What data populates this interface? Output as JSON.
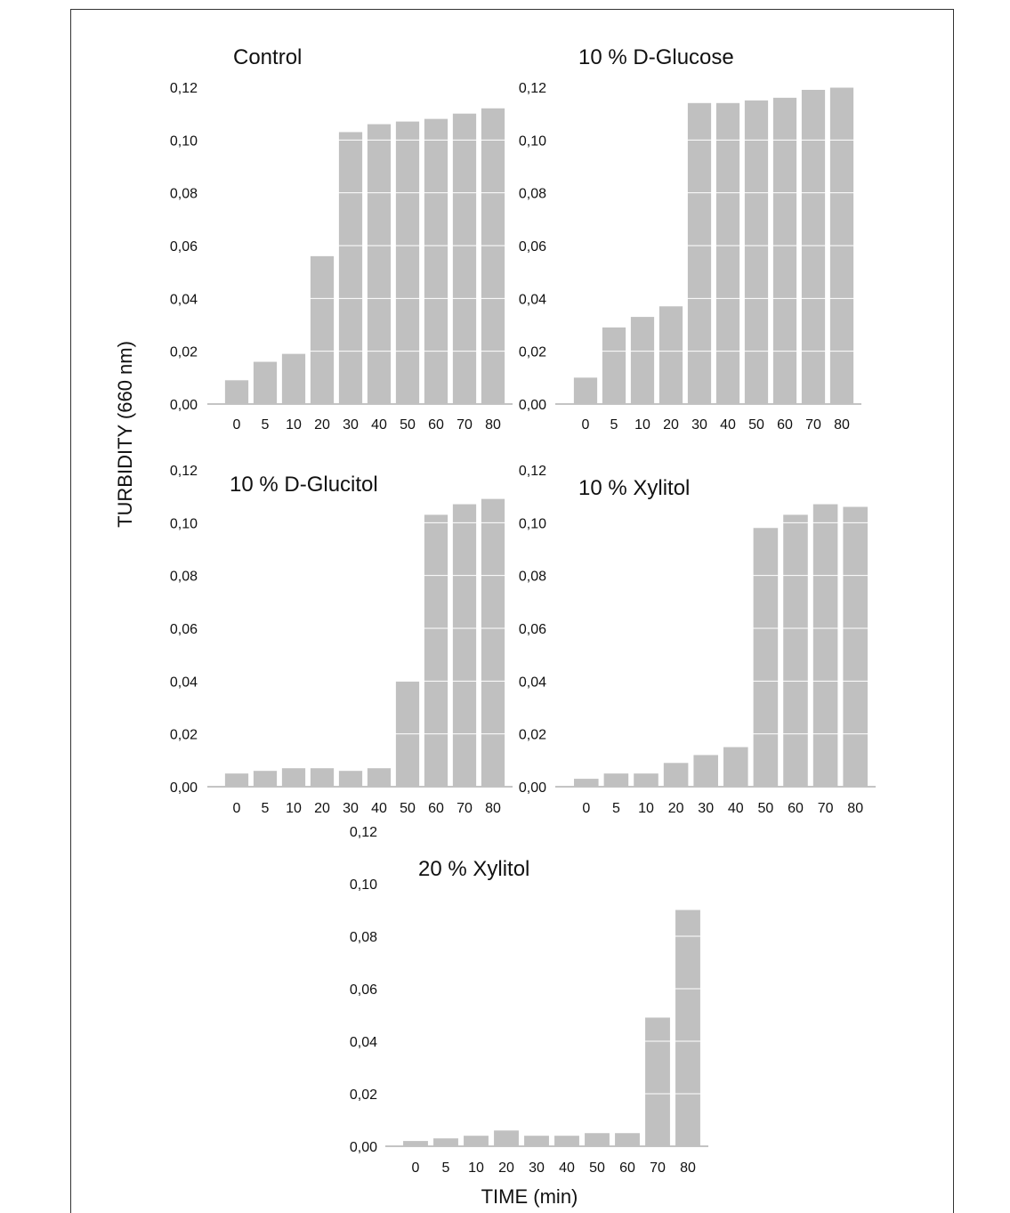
{
  "chart_data": [
    {
      "type": "bar",
      "title": "Control",
      "categories": [
        "0",
        "5",
        "10",
        "20",
        "30",
        "40",
        "50",
        "60",
        "70",
        "80"
      ],
      "values": [
        0.009,
        0.016,
        0.019,
        0.056,
        0.103,
        0.106,
        0.107,
        0.108,
        0.11,
        0.112
      ],
      "ylim": [
        0,
        0.12
      ],
      "yticks": [
        "0,00",
        "0,02",
        "0,04",
        "0,06",
        "0,08",
        "0,10",
        "0,12"
      ],
      "color": "#c0c0c0"
    },
    {
      "type": "bar",
      "title": "10 % D-Glucose",
      "categories": [
        "0",
        "5",
        "10",
        "20",
        "30",
        "40",
        "50",
        "60",
        "70",
        "80"
      ],
      "values": [
        0.01,
        0.029,
        0.033,
        0.037,
        0.114,
        0.114,
        0.115,
        0.116,
        0.119,
        0.12
      ],
      "ylim": [
        0,
        0.12
      ],
      "yticks": [
        "0,00",
        "0,02",
        "0,04",
        "0,06",
        "0,08",
        "0,10",
        "0,12"
      ],
      "color": "#c0c0c0"
    },
    {
      "type": "bar",
      "title": "10 % D-Glucitol",
      "categories": [
        "0",
        "5",
        "10",
        "20",
        "30",
        "40",
        "50",
        "60",
        "70",
        "80"
      ],
      "values": [
        0.005,
        0.006,
        0.007,
        0.007,
        0.006,
        0.007,
        0.04,
        0.103,
        0.107,
        0.109
      ],
      "ylim": [
        0,
        0.12
      ],
      "yticks": [
        "0,00",
        "0,02",
        "0,04",
        "0,06",
        "0,08",
        "0,10",
        "0,12"
      ],
      "color": "#c0c0c0"
    },
    {
      "type": "bar",
      "title": "10 % Xylitol",
      "categories": [
        "0",
        "5",
        "10",
        "20",
        "30",
        "40",
        "50",
        "60",
        "70",
        "80"
      ],
      "values": [
        0.003,
        0.005,
        0.005,
        0.009,
        0.012,
        0.015,
        0.098,
        0.103,
        0.107,
        0.106
      ],
      "ylim": [
        0,
        0.12
      ],
      "yticks": [
        "0,00",
        "0,02",
        "0,04",
        "0,06",
        "0,08",
        "0,10",
        "0,12"
      ],
      "color": "#c0c0c0"
    },
    {
      "type": "bar",
      "title": "20 % Xylitol",
      "categories": [
        "0",
        "5",
        "10",
        "20",
        "30",
        "40",
        "50",
        "60",
        "70",
        "80"
      ],
      "values": [
        0.002,
        0.003,
        0.004,
        0.006,
        0.004,
        0.004,
        0.005,
        0.005,
        0.049,
        0.09
      ],
      "ylim": [
        0,
        0.1
      ],
      "yticks": [
        "0,00",
        "0,02",
        "0,04",
        "0,06",
        "0,08",
        "0,10",
        "0,12"
      ],
      "color": "#c0c0c0"
    }
  ],
  "ylabel": "TURBIDITY (660 nm)",
  "xlabel": "TIME (min)"
}
